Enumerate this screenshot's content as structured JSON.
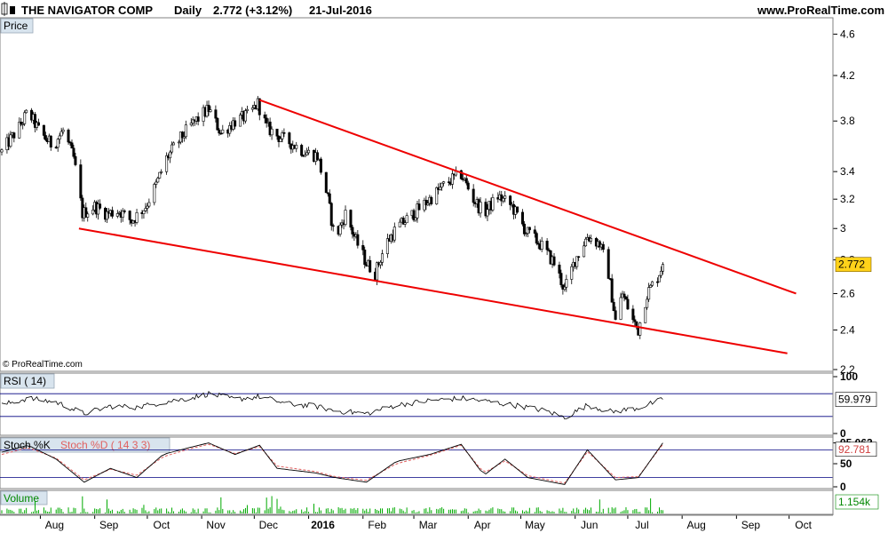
{
  "header": {
    "symbol": "THE NAVIGATOR COMP",
    "timeframe": "Daily",
    "quote": "2.772 (+3.12%)",
    "date": "21-Jul-2016",
    "website": "www.ProRealTime.com"
  },
  "copyright": "© ProRealTime.com",
  "colors": {
    "trendline": "#ee0000",
    "rsi_line": "#000000",
    "stoch_k": "#000000",
    "stoch_d": "#e06060",
    "volume": "#00aa00",
    "panel_label_bg": "#d8e4ee",
    "price_badge": "#ffd21a",
    "band_line": "#000080"
  },
  "chart_data": [
    {
      "type": "candlestick",
      "panel": "Price",
      "title": "Price",
      "ylim": [
        2.2,
        4.75
      ],
      "y_ticks": [
        "4.6",
        "4.2",
        "3.8",
        "3.4",
        "3.2",
        "3",
        "2.8",
        "2.6",
        "2.4",
        "2.2"
      ],
      "last_value": "2.772",
      "x_ticks": [
        {
          "label": "Aug",
          "date": "2015-08-01"
        },
        {
          "label": "Sep",
          "date": "2015-09-01"
        },
        {
          "label": "Oct",
          "date": "2015-10-01"
        },
        {
          "label": "Nov",
          "date": "2015-11-01"
        },
        {
          "label": "Dec",
          "date": "2015-12-01"
        },
        {
          "label": "2016",
          "date": "2016-01-01",
          "bold": true
        },
        {
          "label": "Feb",
          "date": "2016-02-01"
        },
        {
          "label": "Mar",
          "date": "2016-03-01"
        },
        {
          "label": "Apr",
          "date": "2016-04-01"
        },
        {
          "label": "May",
          "date": "2016-05-01"
        },
        {
          "label": "Jun",
          "date": "2016-06-01"
        },
        {
          "label": "Jul",
          "date": "2016-07-01"
        },
        {
          "label": "Aug",
          "date": "2016-08-01"
        },
        {
          "label": "Sep",
          "date": "2016-09-01"
        },
        {
          "label": "Oct",
          "date": "2016-10-01"
        }
      ],
      "x_range": [
        "2015-07-10",
        "2016-10-25"
      ],
      "close_path": [
        [
          "2015-07-10",
          3.55
        ],
        [
          "2015-07-20",
          3.75
        ],
        [
          "2015-07-25",
          3.88
        ],
        [
          "2015-08-01",
          3.7
        ],
        [
          "2015-08-08",
          3.6
        ],
        [
          "2015-08-14",
          3.72
        ],
        [
          "2015-08-20",
          3.5
        ],
        [
          "2015-08-25",
          3.1
        ],
        [
          "2015-09-01",
          3.15
        ],
        [
          "2015-09-08",
          3.1
        ],
        [
          "2015-09-15",
          3.12
        ],
        [
          "2015-09-22",
          3.05
        ],
        [
          "2015-09-30",
          3.15
        ],
        [
          "2015-10-06",
          3.3
        ],
        [
          "2015-10-12",
          3.5
        ],
        [
          "2015-10-18",
          3.62
        ],
        [
          "2015-10-25",
          3.75
        ],
        [
          "2015-11-01",
          3.85
        ],
        [
          "2015-11-05",
          3.9
        ],
        [
          "2015-11-12",
          3.7
        ],
        [
          "2015-11-20",
          3.8
        ],
        [
          "2015-11-28",
          3.85
        ],
        [
          "2015-12-03",
          3.95
        ],
        [
          "2015-12-08",
          3.75
        ],
        [
          "2015-12-14",
          3.68
        ],
        [
          "2015-12-22",
          3.62
        ],
        [
          "2015-12-30",
          3.55
        ],
        [
          "2016-01-06",
          3.52
        ],
        [
          "2016-01-12",
          3.2
        ],
        [
          "2016-01-16",
          2.92
        ],
        [
          "2016-01-22",
          3.1
        ],
        [
          "2016-01-28",
          2.92
        ],
        [
          "2016-02-03",
          2.78
        ],
        [
          "2016-02-08",
          2.72
        ],
        [
          "2016-02-14",
          2.9
        ],
        [
          "2016-02-20",
          3.0
        ],
        [
          "2016-03-01",
          3.1
        ],
        [
          "2016-03-10",
          3.2
        ],
        [
          "2016-03-20",
          3.32
        ],
        [
          "2016-03-28",
          3.38
        ],
        [
          "2016-04-04",
          3.2
        ],
        [
          "2016-04-10",
          3.1
        ],
        [
          "2016-04-18",
          3.22
        ],
        [
          "2016-04-26",
          3.15
        ],
        [
          "2016-05-04",
          2.98
        ],
        [
          "2016-05-12",
          2.9
        ],
        [
          "2016-05-20",
          2.78
        ],
        [
          "2016-05-26",
          2.62
        ],
        [
          "2016-06-01",
          2.8
        ],
        [
          "2016-06-08",
          2.95
        ],
        [
          "2016-06-15",
          2.9
        ],
        [
          "2016-06-20",
          2.72
        ],
        [
          "2016-06-24",
          2.45
        ],
        [
          "2016-06-28",
          2.6
        ],
        [
          "2016-07-04",
          2.45
        ],
        [
          "2016-07-07",
          2.4
        ],
        [
          "2016-07-12",
          2.6
        ],
        [
          "2016-07-18",
          2.7
        ],
        [
          "2016-07-21",
          2.772
        ]
      ],
      "trendlines": [
        {
          "from": [
            "2015-08-23",
            3.0
          ],
          "to": [
            "2016-09-30",
            2.28
          ]
        },
        {
          "from": [
            "2015-12-04",
            3.98
          ],
          "to": [
            "2016-10-05",
            2.6
          ]
        }
      ]
    },
    {
      "type": "line",
      "panel": "RSI",
      "title": "RSI ( 14)",
      "ylim": [
        0,
        100
      ],
      "y_ticks": [
        "100",
        "0"
      ],
      "bands": [
        70,
        30
      ],
      "last_value": "59.979",
      "x": [
        "2015-07-10",
        "2015-07-25",
        "2015-08-10",
        "2015-08-26",
        "2015-09-10",
        "2015-09-25",
        "2015-10-10",
        "2015-10-25",
        "2015-11-05",
        "2015-11-20",
        "2015-12-04",
        "2015-12-20",
        "2016-01-05",
        "2016-01-16",
        "2016-02-03",
        "2016-02-20",
        "2016-03-10",
        "2016-03-28",
        "2016-04-15",
        "2016-05-01",
        "2016-05-15",
        "2016-05-26",
        "2016-06-08",
        "2016-06-22",
        "2016-07-07",
        "2016-07-21"
      ],
      "values": [
        50,
        62,
        55,
        35,
        48,
        46,
        55,
        62,
        70,
        60,
        65,
        52,
        48,
        40,
        35,
        50,
        58,
        62,
        55,
        48,
        40,
        28,
        50,
        38,
        45,
        60
      ]
    },
    {
      "type": "line",
      "panel": "Stochastic",
      "title_k": "Stoch %K",
      "title_d": "Stoch %D ( 14 3 3)",
      "ylim": [
        0,
        100
      ],
      "y_ticks": [
        "95.063",
        "50",
        "0"
      ],
      "bands": [
        80,
        20
      ],
      "last_value": "92.781",
      "x": [
        "2015-07-10",
        "2015-07-25",
        "2015-08-10",
        "2015-08-26",
        "2015-09-10",
        "2015-09-25",
        "2015-10-10",
        "2015-10-25",
        "2015-11-05",
        "2015-11-20",
        "2015-12-04",
        "2015-12-14",
        "2016-01-05",
        "2016-01-16",
        "2016-02-03",
        "2016-02-20",
        "2016-03-10",
        "2016-03-28",
        "2016-04-10",
        "2016-04-22",
        "2016-05-05",
        "2016-05-26",
        "2016-06-08",
        "2016-06-24",
        "2016-07-07",
        "2016-07-21"
      ],
      "values_k": [
        75,
        90,
        60,
        10,
        40,
        20,
        70,
        85,
        95,
        70,
        90,
        40,
        30,
        20,
        10,
        55,
        70,
        92,
        25,
        60,
        20,
        5,
        80,
        15,
        20,
        95
      ],
      "values_d": [
        70,
        85,
        62,
        15,
        38,
        25,
        65,
        82,
        92,
        72,
        87,
        45,
        33,
        22,
        14,
        50,
        68,
        90,
        30,
        56,
        24,
        8,
        76,
        20,
        22,
        92
      ]
    },
    {
      "type": "bar",
      "panel": "Volume",
      "title": "Volume",
      "last_value": "1.154k"
    }
  ]
}
